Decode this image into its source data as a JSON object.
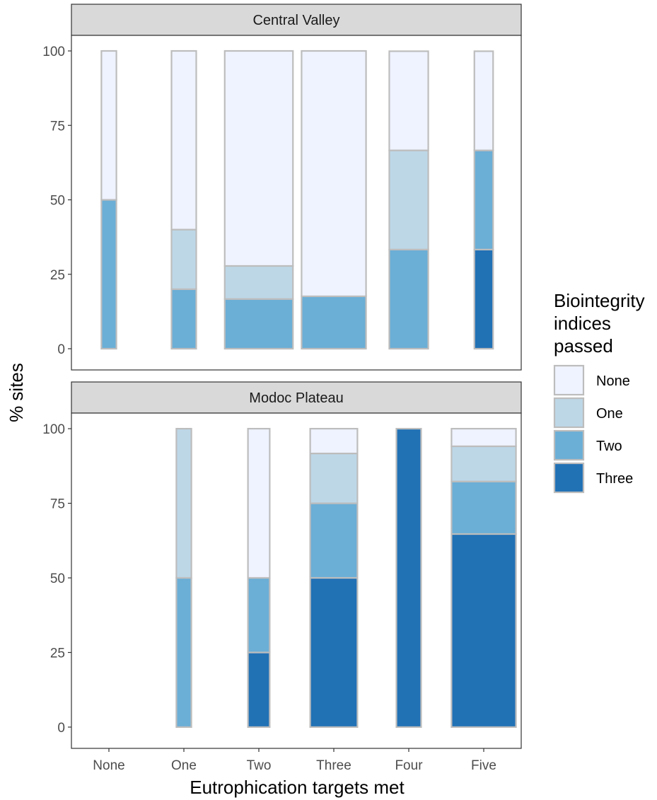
{
  "chart_data": {
    "type": "bar",
    "stacked": true,
    "xlabel": "Eutrophication targets met",
    "ylabel": "% sites",
    "ylim": [
      0,
      100
    ],
    "yticks": [
      0,
      25,
      50,
      75,
      100
    ],
    "categories": [
      "None",
      "One",
      "Two",
      "Three",
      "Four",
      "Five"
    ],
    "legend": {
      "title_lines": [
        "Biointegrity",
        "indices",
        "passed"
      ],
      "position": "right",
      "entries": [
        {
          "name": "None",
          "color": "#eff3ff"
        },
        {
          "name": "One",
          "color": "#bdd7e7"
        },
        {
          "name": "Two",
          "color": "#6baed6"
        },
        {
          "name": "Three",
          "color": "#2171b5"
        }
      ]
    },
    "panels": [
      {
        "label": "Central Valley",
        "bars": [
          {
            "category": "None",
            "relative_width": 0.2,
            "values": {
              "None": 50,
              "One": 0,
              "Two": 50,
              "Three": 0
            }
          },
          {
            "category": "One",
            "relative_width": 0.33,
            "values": {
              "None": 60,
              "One": 20,
              "Two": 20,
              "Three": 0
            }
          },
          {
            "category": "Two",
            "relative_width": 0.91,
            "values": {
              "None": 72.2,
              "One": 11.1,
              "Two": 16.7,
              "Three": 0
            }
          },
          {
            "category": "Three",
            "relative_width": 0.86,
            "values": {
              "None": 82.4,
              "One": 0,
              "Two": 17.6,
              "Three": 0
            }
          },
          {
            "category": "Four",
            "relative_width": 0.52,
            "values": {
              "None": 33.3,
              "One": 33.3,
              "Two": 33.3,
              "Three": 0
            }
          },
          {
            "category": "Five",
            "relative_width": 0.25,
            "values": {
              "None": 33.3,
              "One": 0,
              "Two": 33.3,
              "Three": 33.3
            }
          }
        ]
      },
      {
        "label": "Modoc Plateau",
        "bars": [
          {
            "category": "One",
            "relative_width": 0.2,
            "values": {
              "None": 0,
              "One": 50,
              "Two": 50,
              "Three": 0
            }
          },
          {
            "category": "Two",
            "relative_width": 0.29,
            "values": {
              "None": 50,
              "One": 0,
              "Two": 25,
              "Three": 25
            }
          },
          {
            "category": "Three",
            "relative_width": 0.63,
            "values": {
              "None": 8.3,
              "One": 16.7,
              "Two": 25,
              "Three": 50
            }
          },
          {
            "category": "Four",
            "relative_width": 0.33,
            "values": {
              "None": 0,
              "One": 0,
              "Two": 0,
              "Three": 100
            }
          },
          {
            "category": "Five",
            "relative_width": 0.86,
            "values": {
              "None": 5.9,
              "One": 11.8,
              "Two": 17.6,
              "Three": 64.7
            }
          }
        ]
      }
    ]
  }
}
